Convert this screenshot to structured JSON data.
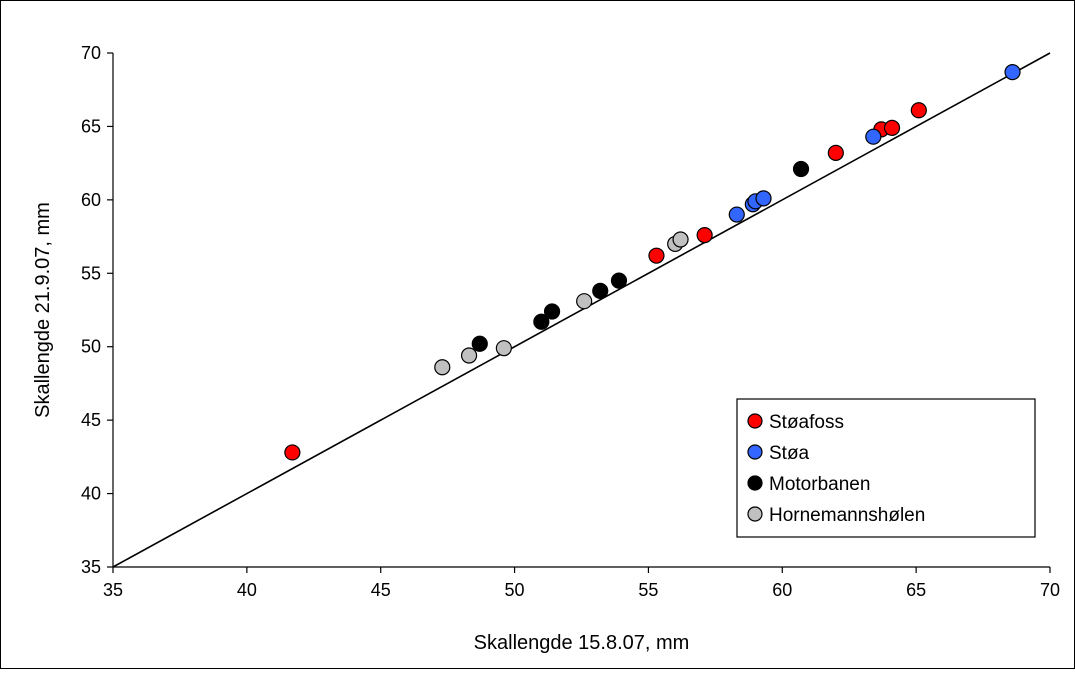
{
  "chart_data": {
    "type": "scatter",
    "title": "",
    "xlabel": "Skallengde 15.8.07, mm",
    "ylabel": "Skallengde 21.9.07, mm",
    "xlim": [
      35,
      70
    ],
    "ylim": [
      35,
      70
    ],
    "xticks": [
      35,
      40,
      45,
      50,
      55,
      60,
      65,
      70
    ],
    "yticks": [
      35,
      40,
      45,
      50,
      55,
      60,
      65,
      70
    ],
    "grid": false,
    "legend_position": "bottom-right",
    "reference_line": {
      "from": [
        35,
        35
      ],
      "to": [
        70,
        70
      ]
    },
    "series": [
      {
        "name": "Støafoss",
        "color": "#ff0000",
        "points": [
          [
            41.7,
            42.8
          ],
          [
            55.3,
            56.2
          ],
          [
            57.1,
            57.6
          ],
          [
            62.0,
            63.2
          ],
          [
            63.7,
            64.8
          ],
          [
            64.1,
            64.9
          ],
          [
            65.1,
            66.1
          ]
        ]
      },
      {
        "name": "Støa",
        "color": "#3366ff",
        "points": [
          [
            58.3,
            59.0
          ],
          [
            58.9,
            59.7
          ],
          [
            59.0,
            59.9
          ],
          [
            59.3,
            60.1
          ],
          [
            63.4,
            64.3
          ],
          [
            68.6,
            68.7
          ]
        ]
      },
      {
        "name": "Motorbanen",
        "color": "#000000",
        "points": [
          [
            48.7,
            50.2
          ],
          [
            51.0,
            51.7
          ],
          [
            51.4,
            52.4
          ],
          [
            53.2,
            53.8
          ],
          [
            53.9,
            54.5
          ],
          [
            60.7,
            62.1
          ]
        ]
      },
      {
        "name": "Hornemannshølen",
        "color": "#c0c0c0",
        "points": [
          [
            47.3,
            48.6
          ],
          [
            48.3,
            49.4
          ],
          [
            49.6,
            49.9
          ],
          [
            52.6,
            53.1
          ],
          [
            56.0,
            57.0
          ],
          [
            56.2,
            57.3
          ]
        ]
      }
    ]
  }
}
